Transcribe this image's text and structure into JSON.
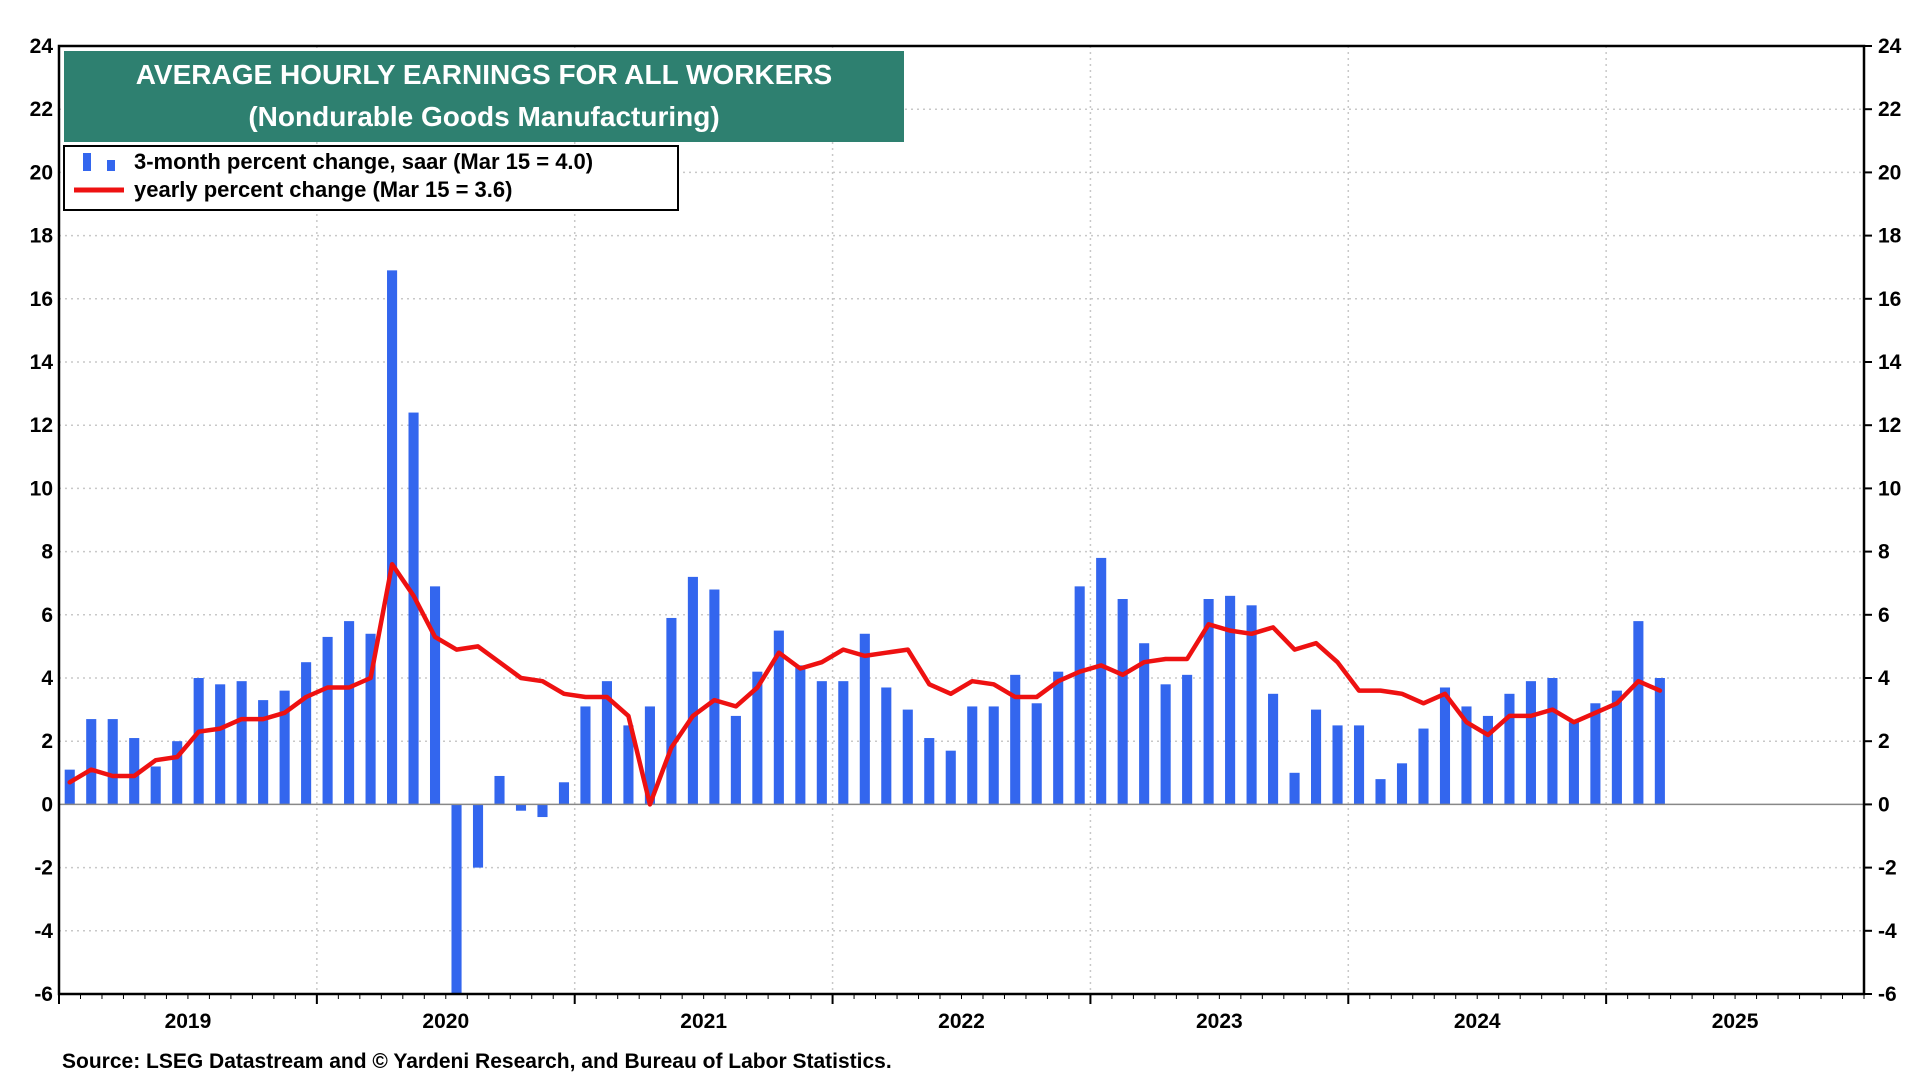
{
  "title": {
    "line1": "AVERAGE HOURLY EARNINGS FOR ALL WORKERS",
    "line2": "(Nondurable Goods Manufacturing)"
  },
  "legend": {
    "bars_label": "3-month percent change, saar (Mar 15 = 4.0)",
    "line_label": "yearly percent change (Mar 15 = 3.6)"
  },
  "source": "Source: LSEG Datastream and © Yardeni Research, and Bureau of Labor Statistics.",
  "colors": {
    "bars": "#3366ee",
    "line": "#ee1111",
    "title_box": "#2e8070",
    "zero_line": "#888888",
    "grid": "#c8c8c8"
  },
  "chart_data": {
    "type": "bar",
    "x_start": "2019-01",
    "x_end": "2025-12",
    "x_ticks": [
      "2019",
      "2020",
      "2021",
      "2022",
      "2023",
      "2024",
      "2025"
    ],
    "ylim": [
      -6,
      24
    ],
    "y_ticks": [
      -6,
      -4,
      -2,
      0,
      2,
      4,
      6,
      8,
      10,
      12,
      14,
      16,
      18,
      20,
      22,
      24
    ],
    "grid": true,
    "legend_position": "top-left",
    "title": "AVERAGE HOURLY EARNINGS FOR ALL WORKERS (Nondurable Goods Manufacturing)",
    "series": [
      {
        "name": "3-month percent change, saar (Mar 15 = 4.0)",
        "type": "bar",
        "x": [
          "2019-01",
          "2019-02",
          "2019-03",
          "2019-04",
          "2019-05",
          "2019-06",
          "2019-07",
          "2019-08",
          "2019-09",
          "2019-10",
          "2019-11",
          "2019-12",
          "2020-01",
          "2020-02",
          "2020-03",
          "2020-04",
          "2020-05",
          "2020-06",
          "2020-07",
          "2020-08",
          "2020-09",
          "2020-10",
          "2020-11",
          "2020-12",
          "2021-01",
          "2021-02",
          "2021-03",
          "2021-04",
          "2021-05",
          "2021-06",
          "2021-07",
          "2021-08",
          "2021-09",
          "2021-10",
          "2021-11",
          "2021-12",
          "2022-01",
          "2022-02",
          "2022-03",
          "2022-04",
          "2022-05",
          "2022-06",
          "2022-07",
          "2022-08",
          "2022-09",
          "2022-10",
          "2022-11",
          "2022-12",
          "2023-01",
          "2023-02",
          "2023-03",
          "2023-04",
          "2023-05",
          "2023-06",
          "2023-07",
          "2023-08",
          "2023-09",
          "2023-10",
          "2023-11",
          "2023-12",
          "2024-01",
          "2024-02",
          "2024-03",
          "2024-04",
          "2024-05",
          "2024-06",
          "2024-07",
          "2024-08",
          "2024-09",
          "2024-10",
          "2024-11",
          "2024-12",
          "2025-01",
          "2025-02",
          "2025-03"
        ],
        "values": [
          1.1,
          2.7,
          2.7,
          2.1,
          1.2,
          2.0,
          4.0,
          3.8,
          3.9,
          3.3,
          3.6,
          4.5,
          5.3,
          5.8,
          5.4,
          16.9,
          12.4,
          6.9,
          -6.0,
          -2.0,
          0.9,
          -0.2,
          -0.4,
          0.7,
          3.1,
          3.9,
          2.5,
          3.1,
          5.9,
          7.2,
          6.8,
          2.8,
          4.2,
          5.5,
          4.4,
          3.9,
          3.9,
          5.4,
          3.7,
          3.0,
          2.1,
          1.7,
          3.1,
          3.1,
          4.1,
          3.2,
          4.2,
          6.9,
          7.8,
          6.5,
          5.1,
          3.8,
          4.1,
          6.5,
          6.6,
          6.3,
          3.5,
          1.0,
          3.0,
          2.5,
          2.5,
          0.8,
          1.3,
          2.4,
          3.7,
          3.1,
          2.8,
          3.5,
          3.9,
          4.0,
          2.6,
          3.2,
          3.6,
          5.8,
          4.0
        ]
      },
      {
        "name": "yearly percent change (Mar 15 = 3.6)",
        "type": "line",
        "x": [
          "2019-01",
          "2019-02",
          "2019-03",
          "2019-04",
          "2019-05",
          "2019-06",
          "2019-07",
          "2019-08",
          "2019-09",
          "2019-10",
          "2019-11",
          "2019-12",
          "2020-01",
          "2020-02",
          "2020-03",
          "2020-04",
          "2020-05",
          "2020-06",
          "2020-07",
          "2020-08",
          "2020-09",
          "2020-10",
          "2020-11",
          "2020-12",
          "2021-01",
          "2021-02",
          "2021-03",
          "2021-04",
          "2021-05",
          "2021-06",
          "2021-07",
          "2021-08",
          "2021-09",
          "2021-10",
          "2021-11",
          "2021-12",
          "2022-01",
          "2022-02",
          "2022-03",
          "2022-04",
          "2022-05",
          "2022-06",
          "2022-07",
          "2022-08",
          "2022-09",
          "2022-10",
          "2022-11",
          "2022-12",
          "2023-01",
          "2023-02",
          "2023-03",
          "2023-04",
          "2023-05",
          "2023-06",
          "2023-07",
          "2023-08",
          "2023-09",
          "2023-10",
          "2023-11",
          "2023-12",
          "2024-01",
          "2024-02",
          "2024-03",
          "2024-04",
          "2024-05",
          "2024-06",
          "2024-07",
          "2024-08",
          "2024-09",
          "2024-10",
          "2024-11",
          "2024-12",
          "2025-01",
          "2025-02",
          "2025-03"
        ],
        "values": [
          0.7,
          1.1,
          0.9,
          0.9,
          1.4,
          1.5,
          2.3,
          2.4,
          2.7,
          2.7,
          2.9,
          3.4,
          3.7,
          3.7,
          4.0,
          7.6,
          6.6,
          5.3,
          4.9,
          5.0,
          4.5,
          4.0,
          3.9,
          3.5,
          3.4,
          3.4,
          2.8,
          0.0,
          1.8,
          2.8,
          3.3,
          3.1,
          3.7,
          4.8,
          4.3,
          4.5,
          4.9,
          4.7,
          4.8,
          4.9,
          3.8,
          3.5,
          3.9,
          3.8,
          3.4,
          3.4,
          3.9,
          4.2,
          4.4,
          4.1,
          4.5,
          4.6,
          4.6,
          5.7,
          5.5,
          5.4,
          5.6,
          4.9,
          5.1,
          4.5,
          3.6,
          3.6,
          3.5,
          3.2,
          3.5,
          2.6,
          2.2,
          2.8,
          2.8,
          3.0,
          2.6,
          2.9,
          3.2,
          3.9,
          3.6
        ]
      }
    ]
  }
}
